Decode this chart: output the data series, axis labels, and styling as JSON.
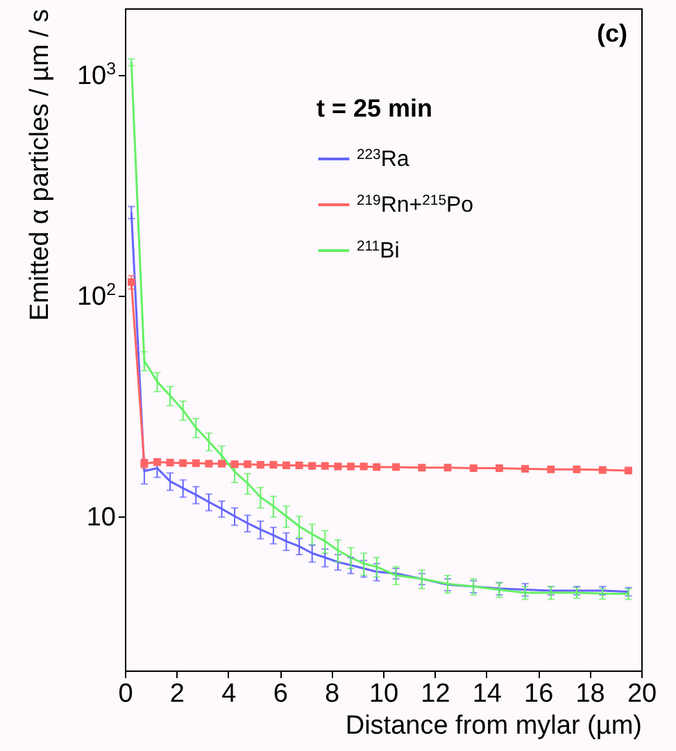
{
  "chart_data": {
    "type": "line",
    "xlabel": "Distance from mylar (µm)",
    "ylabel": "Emitted α particles / µm / s",
    "legend_title": "t = 25 min",
    "legend": "top right",
    "grid": false,
    "log": "y",
    "annotations": [
      "(c)"
    ],
    "xlim": [
      0,
      20
    ],
    "xticks": [
      0,
      2,
      4,
      6,
      8,
      10,
      12,
      14,
      16,
      18,
      20
    ],
    "ylim": [
      2,
      2000
    ],
    "yticks": [
      {
        "value": 10,
        "label": "10"
      },
      {
        "value": 100,
        "label": "10$^{2}$"
      },
      {
        "value": 1000,
        "label": "10$^{3}$"
      }
    ],
    "x": [
      0.25,
      0.75,
      1.25,
      1.75,
      2.25,
      2.75,
      3.25,
      3.75,
      4.25,
      4.75,
      5.25,
      5.75,
      6.25,
      6.75,
      7.25,
      7.75,
      8.25,
      8.75,
      9.25,
      9.75,
      10.5,
      11.5,
      12.5,
      13.5,
      14.5,
      15.5,
      16.5,
      17.5,
      18.5,
      19.5
    ],
    "series": [
      {
        "name": "$^{223}$Ra",
        "color": "#6464ff",
        "marker": "none",
        "values": [
          238,
          16,
          16.5,
          14.4,
          13.4,
          12.5,
          11.6,
          10.8,
          10.0,
          9.3,
          8.7,
          8.2,
          7.7,
          7.3,
          6.8,
          6.5,
          6.2,
          6.0,
          5.8,
          5.6,
          5.5,
          5.2,
          4.9,
          4.8,
          4.7,
          4.65,
          4.6,
          4.6,
          4.6,
          4.55
        ],
        "errors": [
          15,
          2,
          1.5,
          1.3,
          1.2,
          1.1,
          1.0,
          0.9,
          0.9,
          0.8,
          0.8,
          0.7,
          0.7,
          0.6,
          0.6,
          0.6,
          0.5,
          0.5,
          0.5,
          0.5,
          0.3,
          0.3,
          0.3,
          0.3,
          0.3,
          0.3,
          0.2,
          0.2,
          0.2,
          0.2
        ]
      },
      {
        "name": "$^{219}$Rn+$^{215}$Po",
        "color": "#ff6464",
        "marker": "square",
        "values": [
          115,
          17.3,
          17.6,
          17.5,
          17.4,
          17.4,
          17.3,
          17.3,
          17.2,
          17.2,
          17.1,
          17.1,
          17.0,
          17.0,
          16.9,
          16.9,
          16.8,
          16.8,
          16.8,
          16.7,
          16.7,
          16.6,
          16.6,
          16.5,
          16.5,
          16.4,
          16.3,
          16.3,
          16.2,
          16.1
        ],
        "errors": [
          8,
          0.8,
          0.6,
          0.5,
          0.5,
          0.5,
          0.5,
          0.5,
          0.5,
          0.4,
          0.4,
          0.4,
          0.4,
          0.4,
          0.4,
          0.4,
          0.4,
          0.4,
          0.4,
          0.4,
          0.3,
          0.3,
          0.3,
          0.3,
          0.3,
          0.3,
          0.3,
          0.3,
          0.3,
          0.3
        ]
      },
      {
        "name": "$^{211}$Bi",
        "color": "#64f064",
        "marker": "none",
        "values": [
          1140,
          50.6,
          40.7,
          35.2,
          30.2,
          25.2,
          21.8,
          18.8,
          15.9,
          14.1,
          12.2,
          11.1,
          10.0,
          9.0,
          8.3,
          7.7,
          7.0,
          6.5,
          6.1,
          5.9,
          5.4,
          5.2,
          4.94,
          4.8,
          4.64,
          4.5,
          4.5,
          4.5,
          4.46,
          4.45
        ],
        "errors": [
          40,
          5,
          4,
          3.5,
          3,
          2.5,
          2,
          2,
          1.7,
          1.5,
          1.3,
          1.2,
          1.1,
          1,
          0.9,
          0.9,
          0.8,
          0.7,
          0.7,
          0.6,
          0.5,
          0.5,
          0.45,
          0.4,
          0.35,
          0.3,
          0.3,
          0.25,
          0.25,
          0.25
        ]
      }
    ]
  }
}
